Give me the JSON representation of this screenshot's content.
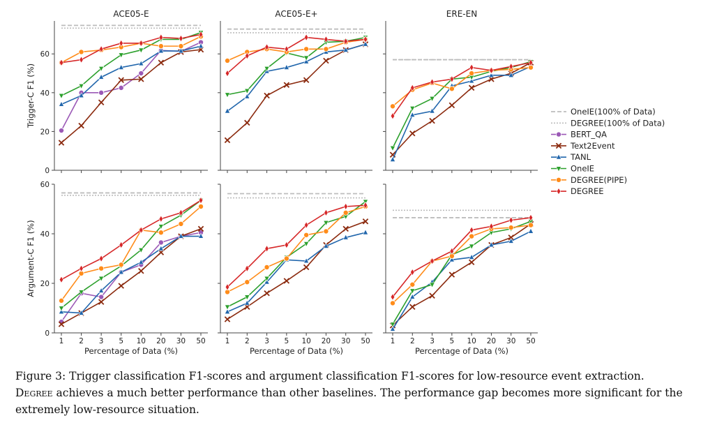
{
  "x_ticks": [
    "1",
    "2",
    "3",
    "5",
    "10",
    "20",
    "30",
    "50"
  ],
  "colors": {
    "BERT_QA": "#9b59b6",
    "Text2Event": "#8b2a0e",
    "TANL": "#2166ac",
    "OneIE": "#2ca02c",
    "DEGREE(PIPE)": "#ff8c1a",
    "DEGREE": "#d62728",
    "ref": "#bdbdbd"
  },
  "legend": [
    "OneIE(100% of Data)",
    "DEGREE(100% of Data)",
    "BERT_QA",
    "Text2Event",
    "TANL",
    "OneIE",
    "DEGREE(PIPE)",
    "DEGREE"
  ],
  "chart_data": [
    {
      "type": "line",
      "title": "ACE05-E",
      "ylabel": "Trigger-C F1 (%)",
      "xlabel": "",
      "ylim": [
        0,
        77
      ],
      "yticks": [
        "0",
        "20",
        "40",
        "60"
      ],
      "categories": [
        "1",
        "2",
        "3",
        "5",
        "10",
        "20",
        "30",
        "50"
      ],
      "reference": {
        "OneIE(100% of Data)": 74.7,
        "DEGREE(100% of Data)": 73.3
      },
      "series": [
        {
          "name": "BERT_QA",
          "marker": "circle",
          "values": [
            20.5,
            40.0,
            40.0,
            42.5,
            50.0,
            61.8,
            61.3,
            66.0
          ]
        },
        {
          "name": "Text2Event",
          "marker": "x",
          "values": [
            14.2,
            23.0,
            35.0,
            46.5,
            47.0,
            55.5,
            61.0,
            62.2
          ]
        },
        {
          "name": "TANL",
          "marker": "triangle-up",
          "values": [
            34.0,
            38.5,
            48.0,
            53.0,
            55.0,
            61.5,
            61.5,
            64.0
          ]
        },
        {
          "name": "OneIE",
          "marker": "triangle-down",
          "values": [
            38.5,
            43.5,
            52.5,
            59.5,
            62.0,
            67.5,
            67.5,
            71.0
          ]
        },
        {
          "name": "DEGREE(PIPE)",
          "marker": "circle",
          "values": [
            55.5,
            61.0,
            62.0,
            63.5,
            65.5,
            64.0,
            64.0,
            69.0
          ]
        },
        {
          "name": "DEGREE",
          "marker": "diamond",
          "values": [
            55.5,
            57.0,
            62.5,
            65.5,
            65.5,
            68.5,
            68.0,
            70.0
          ]
        }
      ]
    },
    {
      "type": "line",
      "title": "ACE05-E+",
      "ylabel": "",
      "xlabel": "",
      "ylim": [
        0,
        77
      ],
      "yticks": [
        "0",
        "20",
        "40",
        "60"
      ],
      "categories": [
        "1",
        "2",
        "3",
        "5",
        "10",
        "20",
        "30",
        "50"
      ],
      "reference": {
        "OneIE(100% of Data)": 72.8,
        "DEGREE(100% of Data)": 70.9
      },
      "series": [
        {
          "name": "Text2Event",
          "marker": "x",
          "values": [
            15.5,
            24.5,
            38.5,
            44.0,
            46.5,
            56.5,
            62.0,
            65.0
          ]
        },
        {
          "name": "TANL",
          "marker": "triangle-up",
          "values": [
            30.5,
            38.0,
            51.0,
            53.0,
            56.0,
            61.0,
            62.0,
            65.0
          ]
        },
        {
          "name": "OneIE",
          "marker": "triangle-down",
          "values": [
            39.0,
            41.0,
            52.5,
            60.5,
            58.0,
            66.0,
            66.5,
            68.5
          ]
        },
        {
          "name": "DEGREE(PIPE)",
          "marker": "circle",
          "values": [
            56.5,
            61.0,
            62.5,
            61.0,
            62.5,
            62.5,
            66.0,
            67.5
          ]
        },
        {
          "name": "DEGREE",
          "marker": "diamond",
          "values": [
            50.0,
            59.0,
            63.5,
            62.5,
            68.5,
            67.5,
            66.5,
            67.5
          ]
        }
      ]
    },
    {
      "type": "line",
      "title": "ERE-EN",
      "ylabel": "",
      "xlabel": "",
      "ylim": [
        0,
        77
      ],
      "yticks": [
        "0",
        "20",
        "40",
        "60"
      ],
      "categories": [
        "1",
        "2",
        "3",
        "5",
        "10",
        "20",
        "30",
        "50"
      ],
      "reference": {
        "OneIE(100% of Data)": 57.0,
        "DEGREE(100% of Data)": 57.0
      },
      "series": [
        {
          "name": "Text2Event",
          "marker": "x",
          "values": [
            8.0,
            19.0,
            25.5,
            33.5,
            42.5,
            47.0,
            50.0,
            55.5
          ]
        },
        {
          "name": "TANL",
          "marker": "triangle-up",
          "values": [
            5.5,
            28.5,
            30.5,
            43.5,
            46.0,
            49.0,
            49.0,
            53.5
          ]
        },
        {
          "name": "OneIE",
          "marker": "triangle-down",
          "values": [
            11.5,
            32.0,
            37.0,
            47.0,
            48.0,
            51.0,
            53.0,
            56.0
          ]
        },
        {
          "name": "DEGREE(PIPE)",
          "marker": "circle",
          "values": [
            33.0,
            41.5,
            45.0,
            42.0,
            50.0,
            51.5,
            52.0,
            53.0
          ]
        },
        {
          "name": "DEGREE",
          "marker": "diamond",
          "values": [
            28.0,
            42.5,
            45.5,
            47.0,
            53.0,
            51.5,
            53.5,
            55.5
          ]
        }
      ]
    },
    {
      "type": "line",
      "title": "",
      "ylabel": "Argument-C F1 (%)",
      "xlabel": "Percentage of Data (%)",
      "ylim": [
        0,
        60
      ],
      "yticks": [
        "0",
        "20",
        "40",
        "60"
      ],
      "categories": [
        "1",
        "2",
        "3",
        "5",
        "10",
        "20",
        "30",
        "50"
      ],
      "reference": {
        "OneIE(100% of Data)": 56.5,
        "DEGREE(100% of Data)": 55.5
      },
      "series": [
        {
          "name": "BERT_QA",
          "marker": "circle",
          "values": [
            4.5,
            16.0,
            14.5,
            24.5,
            27.5,
            36.5,
            39.0,
            40.5
          ]
        },
        {
          "name": "Text2Event",
          "marker": "x",
          "values": [
            3.5,
            8.0,
            12.5,
            19.0,
            25.0,
            32.5,
            39.0,
            42.0
          ]
        },
        {
          "name": "TANL",
          "marker": "triangle-up",
          "values": [
            8.5,
            8.0,
            17.0,
            24.5,
            28.5,
            34.0,
            39.0,
            39.0
          ]
        },
        {
          "name": "OneIE",
          "marker": "triangle-down",
          "values": [
            10.0,
            16.5,
            22.0,
            27.0,
            33.5,
            43.0,
            47.5,
            53.5
          ]
        },
        {
          "name": "DEGREE(PIPE)",
          "marker": "circle",
          "values": [
            13.0,
            24.0,
            26.0,
            27.5,
            41.5,
            40.5,
            44.0,
            51.0
          ]
        },
        {
          "name": "DEGREE",
          "marker": "diamond",
          "values": [
            21.5,
            26.0,
            30.0,
            35.5,
            41.5,
            46.0,
            48.5,
            53.5
          ]
        }
      ]
    },
    {
      "type": "line",
      "title": "",
      "ylabel": "",
      "xlabel": "Percentage of Data (%)",
      "ylim": [
        0,
        60
      ],
      "yticks": [
        "0",
        "20",
        "40",
        "60"
      ],
      "categories": [
        "1",
        "2",
        "3",
        "5",
        "10",
        "20",
        "30",
        "50"
      ],
      "reference": {
        "OneIE(100% of Data)": 56.2,
        "DEGREE(100% of Data)": 54.5
      },
      "series": [
        {
          "name": "Text2Event",
          "marker": "x",
          "values": [
            5.5,
            10.5,
            16.0,
            21.0,
            26.5,
            35.5,
            42.0,
            45.0
          ]
        },
        {
          "name": "TANL",
          "marker": "triangle-up",
          "values": [
            8.5,
            12.0,
            20.5,
            29.5,
            29.0,
            35.0,
            38.5,
            40.5
          ]
        },
        {
          "name": "OneIE",
          "marker": "triangle-down",
          "values": [
            10.5,
            14.5,
            22.0,
            30.5,
            36.0,
            44.5,
            47.0,
            53.0
          ]
        },
        {
          "name": "DEGREE(PIPE)",
          "marker": "circle",
          "values": [
            16.5,
            20.5,
            26.5,
            30.0,
            39.5,
            41.0,
            48.5,
            51.0
          ]
        },
        {
          "name": "DEGREE",
          "marker": "diamond",
          "values": [
            18.5,
            26.0,
            34.0,
            35.5,
            43.5,
            48.5,
            51.0,
            51.5
          ]
        }
      ]
    },
    {
      "type": "line",
      "title": "",
      "ylabel": "",
      "xlabel": "Percentage of Data (%)",
      "ylim": [
        0,
        60
      ],
      "yticks": [
        "0",
        "20",
        "40",
        "60"
      ],
      "categories": [
        "1",
        "2",
        "3",
        "5",
        "10",
        "20",
        "30",
        "50"
      ],
      "reference": {
        "OneIE(100% of Data)": 46.5,
        "DEGREE(100% of Data)": 49.5
      },
      "series": [
        {
          "name": "Text2Event",
          "marker": "x",
          "values": [
            3.0,
            10.5,
            15.0,
            23.5,
            28.5,
            35.5,
            38.5,
            44.0
          ]
        },
        {
          "name": "TANL",
          "marker": "triangle-up",
          "values": [
            1.5,
            14.5,
            20.5,
            29.5,
            30.5,
            35.5,
            37.0,
            41.0
          ]
        },
        {
          "name": "OneIE",
          "marker": "triangle-down",
          "values": [
            3.5,
            17.0,
            19.5,
            31.5,
            35.0,
            40.5,
            42.0,
            45.0
          ]
        },
        {
          "name": "DEGREE(PIPE)",
          "marker": "circle",
          "values": [
            12.0,
            19.5,
            29.0,
            31.0,
            39.0,
            42.0,
            42.5,
            43.5
          ]
        },
        {
          "name": "DEGREE",
          "marker": "diamond",
          "values": [
            14.5,
            24.5,
            29.0,
            33.0,
            41.5,
            43.0,
            45.5,
            46.5
          ]
        }
      ]
    }
  ],
  "caption": {
    "part1": "Figure 3: Trigger classification F1-scores and argument classification F1-scores for low-resource event extraction.",
    "part2": "Degree",
    "part3": " achieves a much better performance than other baselines. The performance gap becomes more significant for the extremely low-resource situation."
  }
}
